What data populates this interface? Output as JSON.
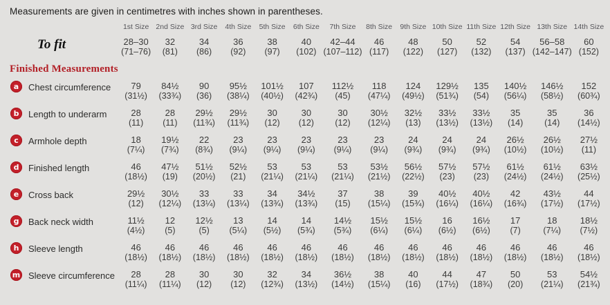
{
  "title": "Measurements are given in centimetres with inches shown in parentheses.",
  "section_heading": "Finished Measurements",
  "size_headers": [
    "1st Size",
    "2nd Size",
    "3rd Size",
    "4th Size",
    "5th Size",
    "6th Size",
    "7th Size",
    "8th Size",
    "9th Size",
    "10th Size",
    "11th Size",
    "12th Size",
    "13th Size",
    "14th Size"
  ],
  "to_fit": {
    "label": "To fit",
    "cm": [
      "28–30",
      "32",
      "34",
      "36",
      "38",
      "40",
      "42–44",
      "46",
      "48",
      "50",
      "52",
      "54",
      "56–58",
      "60"
    ],
    "in": [
      "(71–76)",
      "(81)",
      "(86)",
      "(92)",
      "(97)",
      "(102)",
      "(107–112)",
      "(117)",
      "(122)",
      "(127)",
      "(132)",
      "(137)",
      "(142–147)",
      "(152)"
    ]
  },
  "rows": [
    {
      "letter": "a",
      "label": "Chest circumference",
      "cm": [
        "79",
        "84½",
        "90",
        "95½",
        "101½",
        "107",
        "112½",
        "118",
        "124",
        "129½",
        "135",
        "140½",
        "146½",
        "152"
      ],
      "in": [
        "(31½)",
        "(33¾)",
        "(36)",
        "(38¼)",
        "(40½)",
        "(42¾)",
        "(45)",
        "(47¼)",
        "(49½)",
        "(51¾)",
        "(54)",
        "(56¼)",
        "(58½)",
        "(60¾)"
      ]
    },
    {
      "letter": "b",
      "label": "Length to underarm",
      "cm": [
        "28",
        "28",
        "29½",
        "29½",
        "30",
        "30",
        "30",
        "30½",
        "32½",
        "33½",
        "33½",
        "35",
        "35",
        "36"
      ],
      "in": [
        "(11)",
        "(11)",
        "(11¾)",
        "(11¾)",
        "(12)",
        "(12)",
        "(12)",
        "(12¼)",
        "(13)",
        "(13½)",
        "(13½)",
        "(14)",
        "(14)",
        "(14½)"
      ]
    },
    {
      "letter": "c",
      "label": "Armhole depth",
      "cm": [
        "18",
        "19½",
        "22",
        "23",
        "23",
        "23",
        "23",
        "23",
        "24",
        "24",
        "24",
        "26½",
        "26½",
        "27½"
      ],
      "in": [
        "(7¼)",
        "(7¾)",
        "(8¾)",
        "(9¼)",
        "(9¼)",
        "(9¼)",
        "(9¼)",
        "(9¼)",
        "(9¾)",
        "(9¾)",
        "(9¾)",
        "(10½)",
        "(10½)",
        "(11)"
      ]
    },
    {
      "letter": "d",
      "label": "Finished length",
      "cm": [
        "46",
        "47½",
        "51½",
        "52½",
        "53",
        "53",
        "53",
        "53½",
        "56½",
        "57½",
        "57½",
        "61½",
        "61½",
        "63½"
      ],
      "in": [
        "(18½)",
        "(19)",
        "(20½)",
        "(21)",
        "(21¼)",
        "(21¼)",
        "(21¼)",
        "(21½)",
        "(22½)",
        "(23)",
        "(23)",
        "(24½)",
        "(24½)",
        "(25½)"
      ]
    },
    {
      "letter": "e",
      "label": "Cross back",
      "cm": [
        "29½",
        "30½",
        "33",
        "33",
        "34",
        "34½",
        "37",
        "38",
        "39",
        "40½",
        "40½",
        "42",
        "43½",
        "44"
      ],
      "in": [
        "(12)",
        "(12¼)",
        "(13¼)",
        "(13¼)",
        "(13¾)",
        "(13¾)",
        "(15)",
        "(15¼)",
        "(15¾)",
        "(16¼)",
        "(16¼)",
        "(16¾)",
        "(17½)",
        "(17½)"
      ]
    },
    {
      "letter": "g",
      "label": "Back neck width",
      "cm": [
        "11½",
        "12",
        "12½",
        "13",
        "14",
        "14",
        "14½",
        "15½",
        "15½",
        "16",
        "16½",
        "17",
        "18",
        "18½"
      ],
      "in": [
        "(4½)",
        "(5)",
        "(5)",
        "(5¼)",
        "(5½)",
        "(5¾)",
        "(5¾)",
        "(6¼)",
        "(6¼)",
        "(6½)",
        "(6½)",
        "(7)",
        "(7¼)",
        "(7½)"
      ]
    },
    {
      "letter": "h",
      "label": "Sleeve length",
      "cm": [
        "46",
        "46",
        "46",
        "46",
        "46",
        "46",
        "46",
        "46",
        "46",
        "46",
        "46",
        "46",
        "46",
        "46"
      ],
      "in": [
        "(18½)",
        "(18½)",
        "(18½)",
        "(18½)",
        "(18½)",
        "(18½)",
        "(18½)",
        "(18½)",
        "(18½)",
        "(18½)",
        "(18½)",
        "(18½)",
        "(18½)",
        "(18½)"
      ]
    },
    {
      "letter": "m",
      "label": "Sleeve circumference",
      "cm": [
        "28",
        "28",
        "30",
        "30",
        "32",
        "34",
        "36½",
        "38",
        "40",
        "44",
        "47",
        "50",
        "53",
        "54½"
      ],
      "in": [
        "(11¼)",
        "(11¼)",
        "(12)",
        "(12)",
        "(12¾)",
        "(13½)",
        "(14½)",
        "(15¼)",
        "(16)",
        "(17½)",
        "(18¾)",
        "(20)",
        "(21¼)",
        "(21¾)"
      ]
    }
  ]
}
